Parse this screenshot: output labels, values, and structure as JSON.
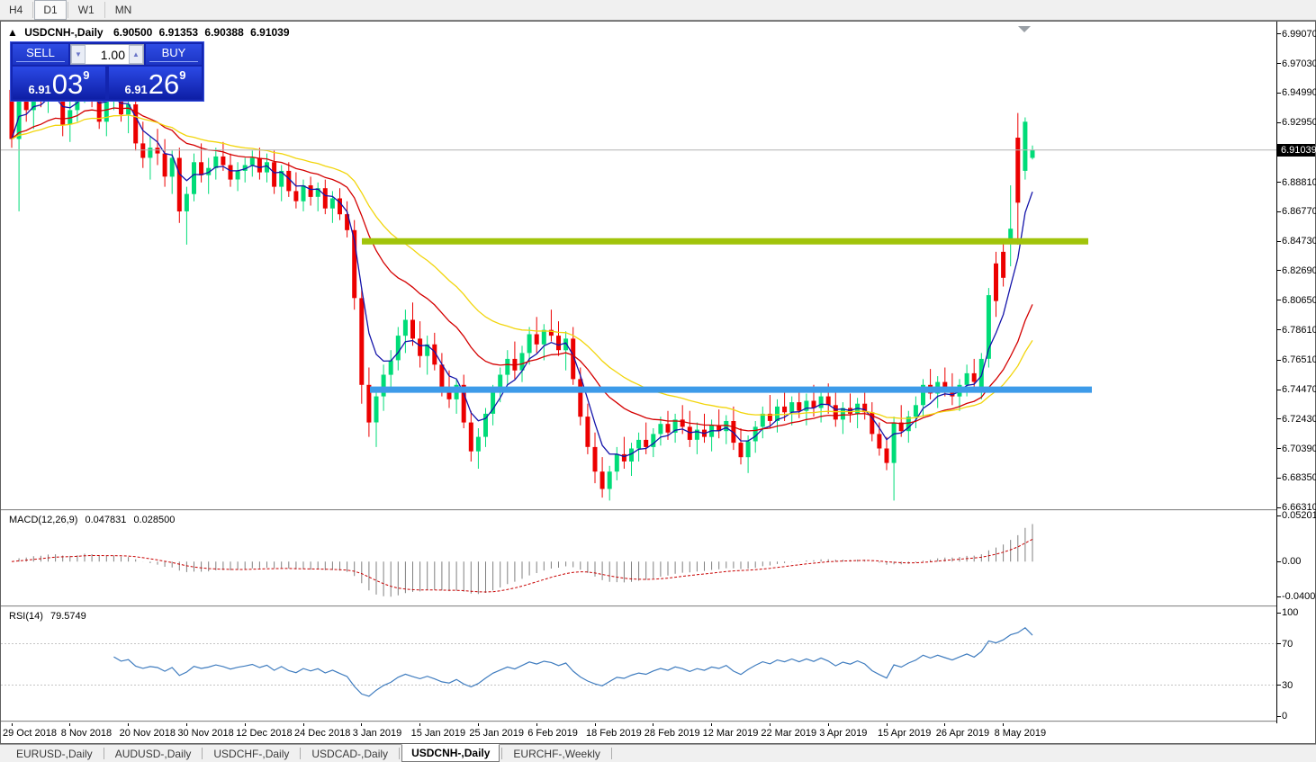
{
  "toolbar": {
    "timeframes": [
      {
        "label": "H4",
        "active": false
      },
      {
        "label": "D1",
        "active": true
      },
      {
        "label": "W1",
        "active": false
      },
      {
        "label": "MN",
        "active": false
      }
    ]
  },
  "header": {
    "collapse_icon": "▲",
    "symbol": "USDCNH-,Daily",
    "open": "6.90500",
    "high": "6.91353",
    "low": "6.90388",
    "close": "6.91039"
  },
  "trade_panel": {
    "sell_label": "SELL",
    "buy_label": "BUY",
    "volume": "1.00",
    "down_arrow": "▼",
    "up_arrow": "▲",
    "bid": {
      "prefix": "6.91",
      "digits": "03",
      "sup": "9"
    },
    "ask": {
      "prefix": "6.91",
      "digits": "26",
      "sup": "9"
    }
  },
  "current_price_label": "6.91039",
  "colors": {
    "bull": "#00DC78",
    "bear": "#EC0000",
    "ma_fast": "#1414AA",
    "ma_mid": "#D40000",
    "ma_slow": "#F2D50C",
    "macd_hist": "#808080",
    "macd_signal": "#C80000",
    "rsi_line": "#3F7CBF",
    "rsi_level": "#C4C4C4",
    "hline_resistance": "#A1C40A",
    "hline_support": "#3D9BE9",
    "price_line": "#B4B4B4",
    "marker": "#9aa0a6"
  },
  "tabs": [
    {
      "label": "EURUSD-,Daily",
      "active": false
    },
    {
      "label": "AUDUSD-,Daily",
      "active": false
    },
    {
      "label": "USDCHF-,Daily",
      "active": false
    },
    {
      "label": "USDCAD-,Daily",
      "active": false
    },
    {
      "label": "USDCNH-,Daily",
      "active": true
    },
    {
      "label": "EURCHF-,Weekly",
      "active": false
    }
  ],
  "chart_data": {
    "type": "candlestick",
    "symbol": "USDCNH-",
    "timeframe": "Daily",
    "last_ohlc": {
      "open": 6.905,
      "high": 6.91353,
      "low": 6.90388,
      "close": 6.91039
    },
    "current_price": 6.91039,
    "ylim": [
      6.662,
      6.998
    ],
    "price_axis_ticks": [
      "6.99070",
      "6.97030",
      "6.94990",
      "6.92950",
      "6.88810",
      "6.86770",
      "6.84730",
      "6.82690",
      "6.80650",
      "6.78610",
      "6.76510",
      "6.74470",
      "6.72430",
      "6.70390",
      "6.68350",
      "6.66310"
    ],
    "x_tick_labels": [
      "29 Oct 2018",
      "8 Nov 2018",
      "20 Nov 2018",
      "30 Nov 2018",
      "12 Dec 2018",
      "24 Dec 2018",
      "3 Jan 2019",
      "15 Jan 2019",
      "25 Jan 2019",
      "6 Feb 2019",
      "18 Feb 2019",
      "28 Feb 2019",
      "12 Mar 2019",
      "22 Mar 2019",
      "3 Apr 2019",
      "15 Apr 2019",
      "26 Apr 2019",
      "8 May 2019"
    ],
    "x_tick_step": 8,
    "candles": [
      [
        6.952,
        6.96,
        6.912,
        6.918
      ],
      [
        6.918,
        6.975,
        6.868,
        6.965
      ],
      [
        6.965,
        6.972,
        6.93,
        6.938
      ],
      [
        6.938,
        6.956,
        6.925,
        6.951
      ],
      [
        6.951,
        6.962,
        6.94,
        6.944
      ],
      [
        6.944,
        6.958,
        6.936,
        6.955
      ],
      [
        6.955,
        6.968,
        6.944,
        6.948
      ],
      [
        6.948,
        6.952,
        6.92,
        6.928
      ],
      [
        6.928,
        6.944,
        6.916,
        6.938
      ],
      [
        6.938,
        6.955,
        6.93,
        6.95
      ],
      [
        6.95,
        6.975,
        6.943,
        6.968
      ],
      [
        6.968,
        6.972,
        6.94,
        6.945
      ],
      [
        6.945,
        6.96,
        6.925,
        6.93
      ],
      [
        6.93,
        6.95,
        6.92,
        6.946
      ],
      [
        6.946,
        6.958,
        6.938,
        6.952
      ],
      [
        6.952,
        6.956,
        6.93,
        6.935
      ],
      [
        6.935,
        6.948,
        6.922,
        6.942
      ],
      [
        6.942,
        6.95,
        6.91,
        6.915
      ],
      [
        6.915,
        6.93,
        6.898,
        6.905
      ],
      [
        6.905,
        6.92,
        6.89,
        6.912
      ],
      [
        6.912,
        6.925,
        6.9,
        6.908
      ],
      [
        6.908,
        6.918,
        6.885,
        6.892
      ],
      [
        6.892,
        6.91,
        6.88,
        6.905
      ],
      [
        6.905,
        6.912,
        6.86,
        6.868
      ],
      [
        6.868,
        6.885,
        6.845,
        6.88
      ],
      [
        6.88,
        6.908,
        6.875,
        6.902
      ],
      [
        6.902,
        6.915,
        6.888,
        6.893
      ],
      [
        6.893,
        6.905,
        6.88,
        6.898
      ],
      [
        6.898,
        6.912,
        6.89,
        6.906
      ],
      [
        6.906,
        6.916,
        6.896,
        6.9
      ],
      [
        6.9,
        6.908,
        6.885,
        6.89
      ],
      [
        6.89,
        6.902,
        6.882,
        6.896
      ],
      [
        6.896,
        6.905,
        6.888,
        6.9
      ],
      [
        6.9,
        6.91,
        6.892,
        6.905
      ],
      [
        6.905,
        6.912,
        6.89,
        6.895
      ],
      [
        6.895,
        6.908,
        6.888,
        6.902
      ],
      [
        6.902,
        6.91,
        6.88,
        6.885
      ],
      [
        6.885,
        6.9,
        6.875,
        6.896
      ],
      [
        6.896,
        6.902,
        6.878,
        6.882
      ],
      [
        6.882,
        6.895,
        6.87,
        6.875
      ],
      [
        6.875,
        6.89,
        6.868,
        6.886
      ],
      [
        6.886,
        6.892,
        6.872,
        6.878
      ],
      [
        6.878,
        6.888,
        6.868,
        6.884
      ],
      [
        6.884,
        6.89,
        6.866,
        6.87
      ],
      [
        6.87,
        6.882,
        6.86,
        6.877
      ],
      [
        6.877,
        6.884,
        6.862,
        6.866
      ],
      [
        6.866,
        6.875,
        6.85,
        6.855
      ],
      [
        6.855,
        6.862,
        6.8,
        6.808
      ],
      [
        6.808,
        6.815,
        6.735,
        6.748
      ],
      [
        6.748,
        6.76,
        6.712,
        6.722
      ],
      [
        6.722,
        6.745,
        6.705,
        6.74
      ],
      [
        6.74,
        6.762,
        6.73,
        6.755
      ],
      [
        6.755,
        6.772,
        6.745,
        6.765
      ],
      [
        6.765,
        6.788,
        6.758,
        6.782
      ],
      [
        6.782,
        6.8,
        6.77,
        6.793
      ],
      [
        6.793,
        6.805,
        6.775,
        6.78
      ],
      [
        6.78,
        6.792,
        6.76,
        6.768
      ],
      [
        6.768,
        6.782,
        6.755,
        6.776
      ],
      [
        6.776,
        6.784,
        6.758,
        6.762
      ],
      [
        6.762,
        6.77,
        6.74,
        6.745
      ],
      [
        6.745,
        6.758,
        6.732,
        6.738
      ],
      [
        6.738,
        6.752,
        6.728,
        6.748
      ],
      [
        6.748,
        6.755,
        6.718,
        6.722
      ],
      [
        6.722,
        6.73,
        6.695,
        6.702
      ],
      [
        6.702,
        6.718,
        6.69,
        6.712
      ],
      [
        6.712,
        6.732,
        6.705,
        6.728
      ],
      [
        6.728,
        6.748,
        6.72,
        6.744
      ],
      [
        6.744,
        6.76,
        6.736,
        6.755
      ],
      [
        6.755,
        6.772,
        6.748,
        6.766
      ],
      [
        6.766,
        6.778,
        6.752,
        6.758
      ],
      [
        6.758,
        6.775,
        6.75,
        6.77
      ],
      [
        6.77,
        6.788,
        6.762,
        6.783
      ],
      [
        6.783,
        6.795,
        6.77,
        6.776
      ],
      [
        6.776,
        6.79,
        6.765,
        6.786
      ],
      [
        6.786,
        6.8,
        6.778,
        6.782
      ],
      [
        6.782,
        6.792,
        6.768,
        6.772
      ],
      [
        6.772,
        6.785,
        6.758,
        6.78
      ],
      [
        6.78,
        6.788,
        6.748,
        6.752
      ],
      [
        6.752,
        6.76,
        6.72,
        6.726
      ],
      [
        6.726,
        6.735,
        6.7,
        6.705
      ],
      [
        6.705,
        6.715,
        6.68,
        6.688
      ],
      [
        6.688,
        6.698,
        6.67,
        6.676
      ],
      [
        6.676,
        6.692,
        6.668,
        6.688
      ],
      [
        6.688,
        6.705,
        6.682,
        6.7
      ],
      [
        6.7,
        6.712,
        6.69,
        6.695
      ],
      [
        6.695,
        6.708,
        6.685,
        6.704
      ],
      [
        6.704,
        6.715,
        6.695,
        6.71
      ],
      [
        6.71,
        6.722,
        6.7,
        6.705
      ],
      [
        6.705,
        6.718,
        6.698,
        6.714
      ],
      [
        6.714,
        6.726,
        6.706,
        6.721
      ],
      [
        6.721,
        6.73,
        6.71,
        6.715
      ],
      [
        6.715,
        6.728,
        6.708,
        6.724
      ],
      [
        6.724,
        6.734,
        6.714,
        6.719
      ],
      [
        6.719,
        6.73,
        6.705,
        6.71
      ],
      [
        6.71,
        6.722,
        6.7,
        6.717
      ],
      [
        6.717,
        6.728,
        6.708,
        6.712
      ],
      [
        6.712,
        6.724,
        6.702,
        6.72
      ],
      [
        6.72,
        6.731,
        6.711,
        6.716
      ],
      [
        6.716,
        6.727,
        6.707,
        6.723
      ],
      [
        6.723,
        6.733,
        6.703,
        6.708
      ],
      [
        6.708,
        6.718,
        6.693,
        6.698
      ],
      [
        6.698,
        6.713,
        6.687,
        6.709
      ],
      [
        6.709,
        6.723,
        6.701,
        6.719
      ],
      [
        6.719,
        6.733,
        6.711,
        6.728
      ],
      [
        6.728,
        6.741,
        6.718,
        6.723
      ],
      [
        6.723,
        6.738,
        6.715,
        6.733
      ],
      [
        6.733,
        6.745,
        6.723,
        6.729
      ],
      [
        6.729,
        6.74,
        6.72,
        6.736
      ],
      [
        6.736,
        6.746,
        6.725,
        6.73
      ],
      [
        6.73,
        6.742,
        6.72,
        6.737
      ],
      [
        6.737,
        6.748,
        6.726,
        6.732
      ],
      [
        6.732,
        6.744,
        6.722,
        6.74
      ],
      [
        6.74,
        6.749,
        6.728,
        6.734
      ],
      [
        6.734,
        6.744,
        6.719,
        6.724
      ],
      [
        6.724,
        6.736,
        6.714,
        6.732
      ],
      [
        6.732,
        6.742,
        6.722,
        6.728
      ],
      [
        6.728,
        6.739,
        6.718,
        6.735
      ],
      [
        6.735,
        6.744,
        6.724,
        6.729
      ],
      [
        6.729,
        6.736,
        6.709,
        6.714
      ],
      [
        6.714,
        6.722,
        6.699,
        6.704
      ],
      [
        6.704,
        6.712,
        6.689,
        6.694
      ],
      [
        6.694,
        6.726,
        6.668,
        6.722
      ],
      [
        6.722,
        6.734,
        6.712,
        6.716
      ],
      [
        6.716,
        6.73,
        6.708,
        6.726
      ],
      [
        6.726,
        6.74,
        6.718,
        6.734
      ],
      [
        6.734,
        6.752,
        6.726,
        6.748
      ],
      [
        6.748,
        6.759,
        6.738,
        6.742
      ],
      [
        6.742,
        6.754,
        6.732,
        6.75
      ],
      [
        6.75,
        6.76,
        6.74,
        6.745
      ],
      [
        6.745,
        6.756,
        6.734,
        6.74
      ],
      [
        6.74,
        6.752,
        6.73,
        6.748
      ],
      [
        6.748,
        6.762,
        6.74,
        6.756
      ],
      [
        6.756,
        6.766,
        6.744,
        6.75
      ],
      [
        6.746,
        6.77,
        6.738,
        6.766
      ],
      [
        6.766,
        6.815,
        6.76,
        6.81
      ],
      [
        6.832,
        6.84,
        6.795,
        6.806
      ],
      [
        6.84,
        6.846,
        6.816,
        6.822
      ],
      [
        6.848,
        6.886,
        6.83,
        6.856
      ],
      [
        6.919,
        6.936,
        6.845,
        6.874
      ],
      [
        6.896,
        6.933,
        6.89,
        6.93
      ],
      [
        6.905,
        6.9135,
        6.9039,
        6.9104
      ]
    ],
    "overlays": [
      {
        "name": "ma-fast",
        "period": 5,
        "color_key": "ma_fast"
      },
      {
        "name": "ma-mid",
        "period": 20,
        "color_key": "ma_mid"
      },
      {
        "name": "ma-slow",
        "period": 34,
        "color_key": "ma_slow"
      }
    ],
    "hlines": [
      {
        "price": 6.8473,
        "color_key": "hline_resistance",
        "x_from": 401,
        "x_to": 1208,
        "width": 7
      },
      {
        "price": 6.7447,
        "color_key": "hline_support",
        "x_from": 410,
        "x_to": 1212,
        "width": 7
      }
    ],
    "macd": {
      "label": "MACD(12,26,9)",
      "fast": 12,
      "slow": 26,
      "signal": 9,
      "value_main": "0.047831",
      "value_signal": "0.028500",
      "axis_ticks": [
        "0.052015",
        "0.00",
        "-0.040015"
      ],
      "ylim": [
        -0.05,
        0.0565
      ]
    },
    "rsi": {
      "label": "RSI(14)",
      "period": 14,
      "value": "79.5749",
      "axis_ticks": [
        "100",
        "70",
        "30",
        "0"
      ],
      "levels": [
        70,
        30
      ]
    }
  }
}
